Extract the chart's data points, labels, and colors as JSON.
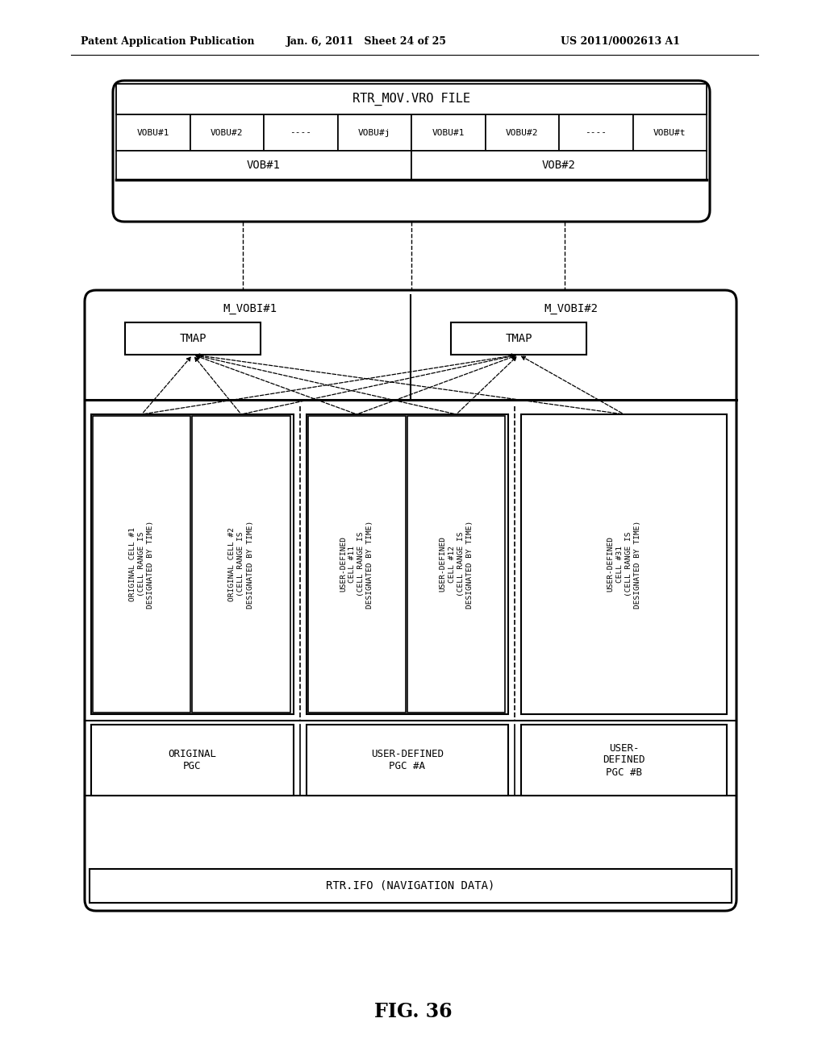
{
  "header_left": "Patent Application Publication",
  "header_mid": "Jan. 6, 2011   Sheet 24 of 25",
  "header_right": "US 2011/0002613 A1",
  "figure_label": "FIG. 36",
  "top_box_title": "RTR_MOV.VRO FILE",
  "vobu_row": [
    "VOBU#1",
    "VOBU#2",
    "----",
    "VOBU#j",
    "VOBU#1",
    "VOBU#2",
    "----",
    "VOBU#t"
  ],
  "vob_row": [
    "VOB#1",
    "VOB#2"
  ],
  "mvob1_label": "M_VOBI#1",
  "mvob2_label": "M_VOBI#2",
  "tmap_label": "TMAP",
  "cell_left_texts": [
    "ORIGINAL CELL #1\n(CELL RANGE IS\nDESIGNATED BY TIME)",
    "ORIGINAL CELL #2\n(CELL RANGE IS\nDESIGNATED BY TIME)"
  ],
  "cell_mid_texts": [
    "USER-DEFINED\nCELL #11\n(CELL RANGE IS\nDESIGNATED BY TIME)",
    "USER-DEFINED\nCELL #12\n(CELL RANGE IS\nDESIGNATED BY TIME)"
  ],
  "cell_right_texts": [
    "USER-DEFINED\nCELL #31\n(CELL RANGE IS\nDESIGNATED BY TIME)"
  ],
  "pgc_texts": [
    "ORIGINAL\nPGC",
    "USER-DEFINED\nPGC #A",
    "USER-\nDEFINED\nPGC #B"
  ],
  "bottom_bar_text": "RTR.IFO (NAVIGATION DATA)",
  "bg_color": "#ffffff"
}
